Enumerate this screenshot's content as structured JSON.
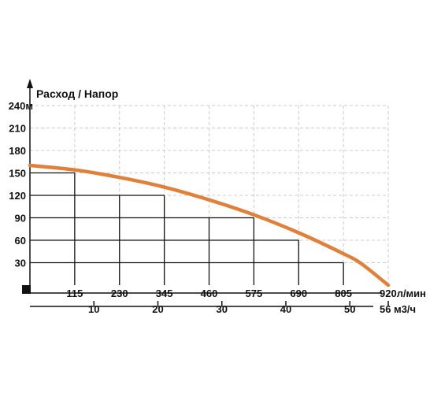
{
  "chart_data": {
    "type": "line",
    "title": "Расход / Напор",
    "y_axis": {
      "unit": "м",
      "ylim": [
        0,
        240
      ],
      "ticks": [
        30,
        60,
        90,
        120,
        150,
        180,
        210,
        240
      ],
      "tick_labels": [
        "30",
        "60",
        "90",
        "120",
        "150",
        "180",
        "210",
        "240м"
      ]
    },
    "x_axis_primary": {
      "unit": "л/мин",
      "xlim": [
        0,
        920
      ],
      "ticks": [
        115,
        230,
        345,
        460,
        575,
        690,
        805,
        920
      ],
      "tick_labels": [
        "115",
        "230",
        "345",
        "460",
        "575",
        "690",
        "805",
        "920л/мин"
      ]
    },
    "x_axis_secondary": {
      "unit": "м3/ч",
      "xlim": [
        0,
        56
      ],
      "ticks": [
        10,
        20,
        30,
        40,
        50,
        56
      ],
      "tick_labels": [
        "10",
        "20",
        "30",
        "40",
        "50",
        "56 м3/ч"
      ]
    },
    "grid": true,
    "series": [
      {
        "color": "#e0803a",
        "x": [
          0,
          115,
          230,
          345,
          460,
          575,
          690,
          805,
          850,
          920
        ],
        "y": [
          160,
          154,
          144,
          131,
          114,
          94,
          70,
          42,
          29,
          0
        ]
      }
    ],
    "drop_lines": [
      {
        "x": 115,
        "y": 150
      },
      {
        "x": 345,
        "y": 120
      },
      {
        "x": 575,
        "y": 90
      },
      {
        "x": 690,
        "y": 60
      },
      {
        "x": 805,
        "y": 30
      }
    ],
    "colors": {
      "curve": "#e0803a",
      "grid": "#cccccc",
      "axis": "#111111"
    }
  }
}
